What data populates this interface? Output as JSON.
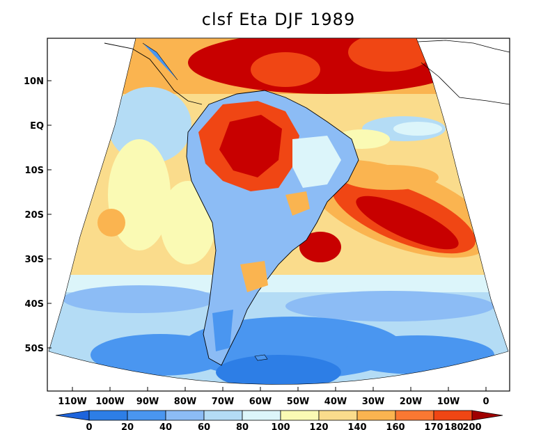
{
  "title": "clsf Eta DJF 1989",
  "lat_labels": [
    "10N",
    "EQ",
    "10S",
    "20S",
    "30S",
    "40S",
    "50S"
  ],
  "lon_labels": [
    "110W",
    "100W",
    "90W",
    "80W",
    "70W",
    "60W",
    "50W",
    "40W",
    "30W",
    "20W",
    "10W",
    "0"
  ],
  "colorbar": {
    "ticks": [
      "0",
      "20",
      "40",
      "60",
      "80",
      "100",
      "120",
      "140",
      "160",
      "170",
      "180",
      "200"
    ],
    "colors": [
      "#1e64dc",
      "#2d7ee6",
      "#4a96f0",
      "#8cbcf5",
      "#b4dcf5",
      "#dcf5fa",
      "#fafab4",
      "#fadc8c",
      "#fab450",
      "#fa7832",
      "#f04614",
      "#c80000",
      "#a00000"
    ]
  }
}
